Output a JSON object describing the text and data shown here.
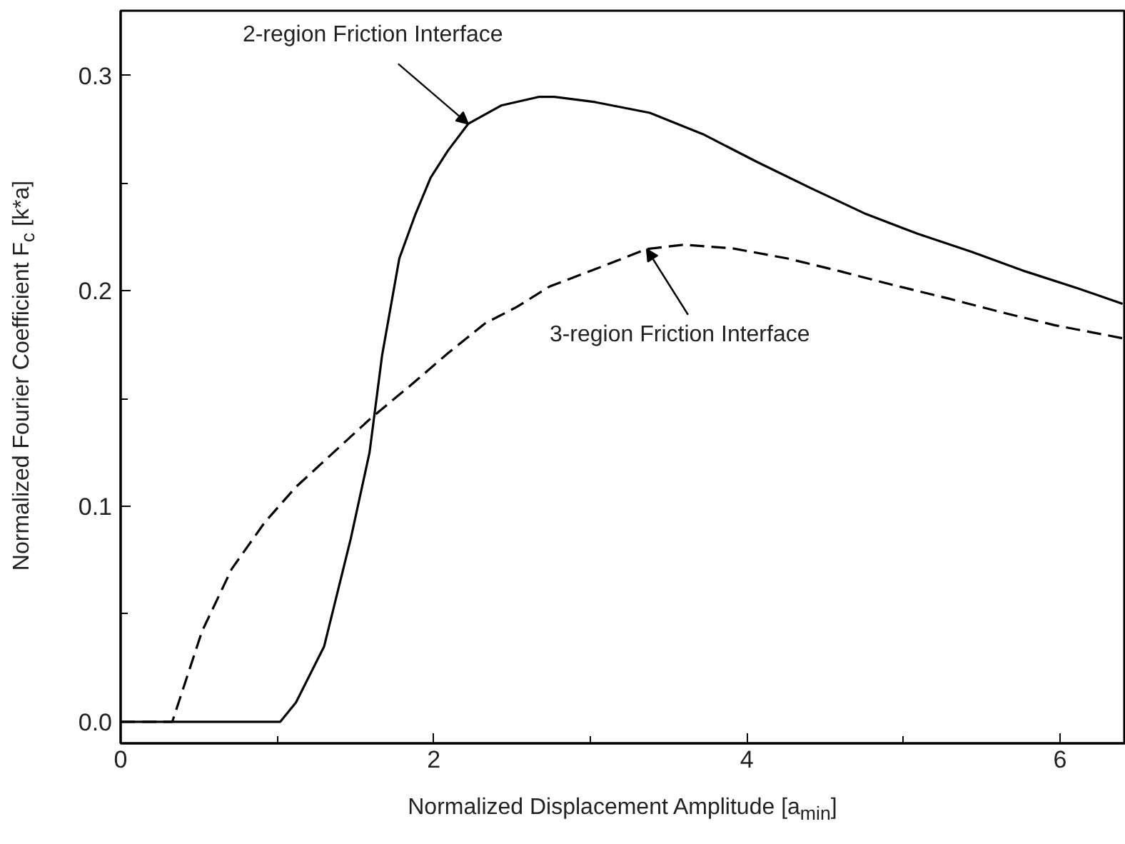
{
  "chart_data": {
    "type": "line",
    "xlabel": "Normalized Displacement Amplitude [a$_{min}$]",
    "ylabel": "Normalized Fourier Coefficient F$_{c}$  [k*a]",
    "xlim": [
      0,
      6.42
    ],
    "ylim": [
      -0.01,
      0.33
    ],
    "xticks": [
      0,
      {
        "value": 1,
        "label": null
      },
      2,
      {
        "value": 3,
        "label": null
      },
      4,
      {
        "value": 5,
        "label": null
      },
      6
    ],
    "yticks": [
      {
        "value": 0,
        "label": "0.0"
      },
      {
        "value": 0.05,
        "label": null
      },
      0.1,
      {
        "value": 0.15,
        "label": null
      },
      0.2,
      {
        "value": 0.25,
        "label": null
      },
      0.3
    ],
    "grid": false,
    "series": [
      {
        "color": "#000000",
        "line_style": "solid",
        "x": [
          0,
          1.02,
          1.12,
          1.3,
          1.47,
          1.59,
          1.67,
          1.78,
          1.88,
          1.98,
          2.09,
          2.22,
          2.43,
          2.67,
          2.77,
          3.03,
          3.38,
          3.72,
          4.06,
          4.41,
          4.75,
          5.09,
          5.44,
          5.78,
          6.12,
          6.4
        ],
        "values": [
          0,
          0,
          0.009,
          0.035,
          0.085,
          0.125,
          0.17,
          0.215,
          0.235,
          0.2525,
          0.265,
          0.2775,
          0.286,
          0.29,
          0.29,
          0.2876,
          0.2826,
          0.2727,
          0.26,
          0.2476,
          0.236,
          0.2265,
          0.218,
          0.209,
          0.201,
          0.194
        ]
      },
      {
        "color": "#000000",
        "line_style": "dashed",
        "x": [
          0,
          0.33,
          0.52,
          0.71,
          0.92,
          1.12,
          1.36,
          1.6,
          1.85,
          2.09,
          2.33,
          2.53,
          2.74,
          3.03,
          3.36,
          3.6,
          3.91,
          4.26,
          4.6,
          4.94,
          5.29,
          5.63,
          5.97,
          6.4
        ],
        "values": [
          0,
          0,
          0.042,
          0.071,
          0.0925,
          0.109,
          0.125,
          0.141,
          0.156,
          0.171,
          0.185,
          0.1925,
          0.202,
          0.21,
          0.2194,
          0.2214,
          0.2197,
          0.215,
          0.209,
          0.2026,
          0.1964,
          0.19,
          0.184,
          0.178
        ]
      }
    ],
    "annotations": [
      {
        "text": "2-region Friction Interface",
        "x": 2.22,
        "y": 0.2775
      },
      {
        "text": "3-region Friction Interface",
        "x": 3.36,
        "y": 0.2194
      }
    ]
  }
}
